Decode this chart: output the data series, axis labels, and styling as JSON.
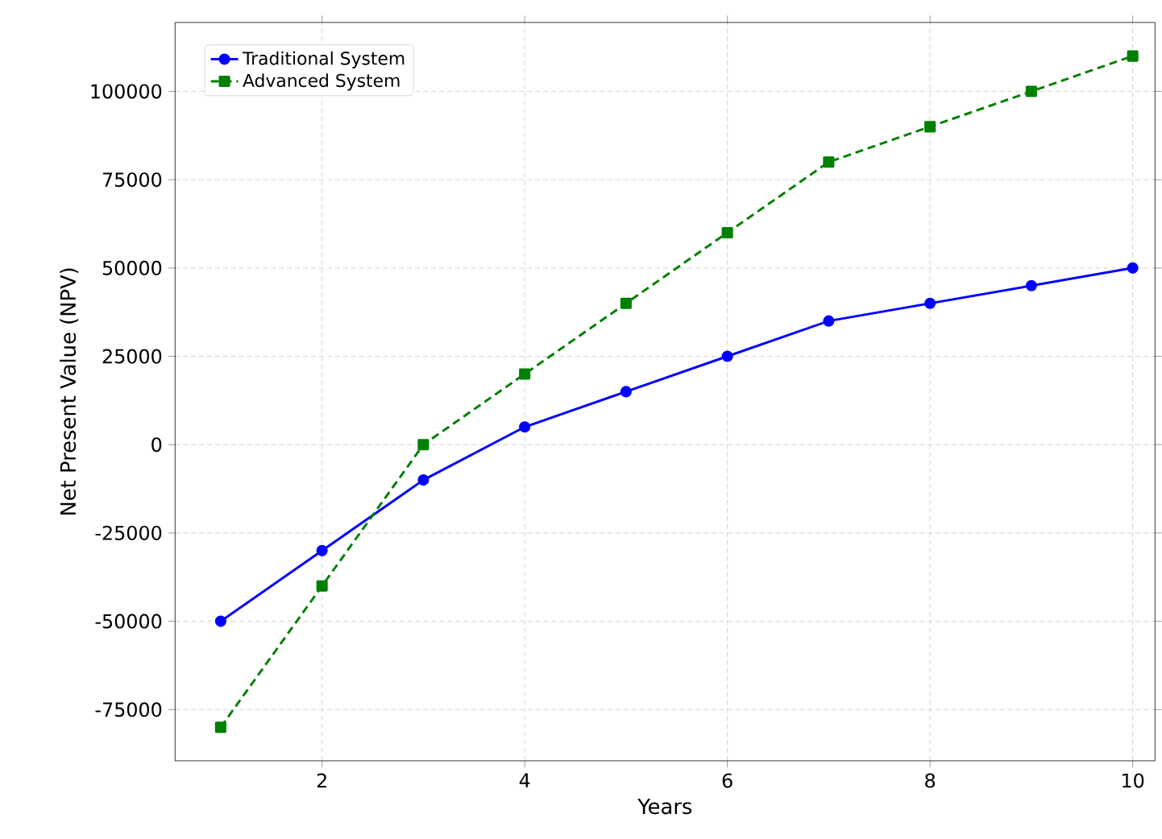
{
  "chart_data": {
    "type": "line",
    "xlabel": "Years",
    "ylabel": "Net Present Value (NPV)",
    "x": [
      1,
      2,
      3,
      4,
      5,
      6,
      7,
      8,
      9,
      10
    ],
    "series": [
      {
        "name": "Traditional System",
        "color": "#0000ff",
        "marker": "circle",
        "line_style": "solid",
        "values": [
          -50000,
          -30000,
          -10000,
          5000,
          15000,
          25000,
          35000,
          40000,
          45000,
          50000
        ]
      },
      {
        "name": "Advanced System",
        "color": "#008000",
        "marker": "square",
        "line_style": "dashed",
        "values": [
          -80000,
          -40000,
          0,
          20000,
          40000,
          60000,
          80000,
          90000,
          100000,
          110000
        ]
      }
    ],
    "xlim": [
      0.55,
      10.22
    ],
    "ylim": [
      -89500,
      119500
    ],
    "xticks": [
      2,
      4,
      6,
      8,
      10
    ],
    "yticks": [
      -75000,
      -50000,
      -25000,
      0,
      25000,
      50000,
      75000,
      100000
    ],
    "grid": true,
    "legend": "top left"
  }
}
